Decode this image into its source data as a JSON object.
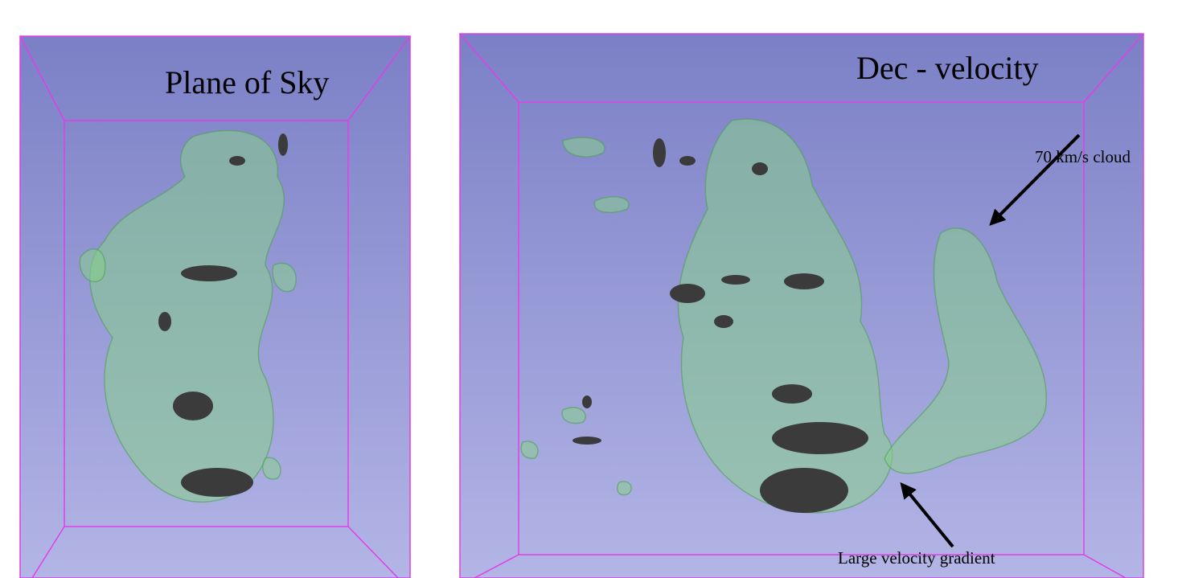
{
  "panels": [
    {
      "label": "Plane of Sky"
    },
    {
      "label": "Dec - velocity",
      "annotations": [
        "70 km/s cloud",
        "Large velocity gradient"
      ]
    }
  ]
}
